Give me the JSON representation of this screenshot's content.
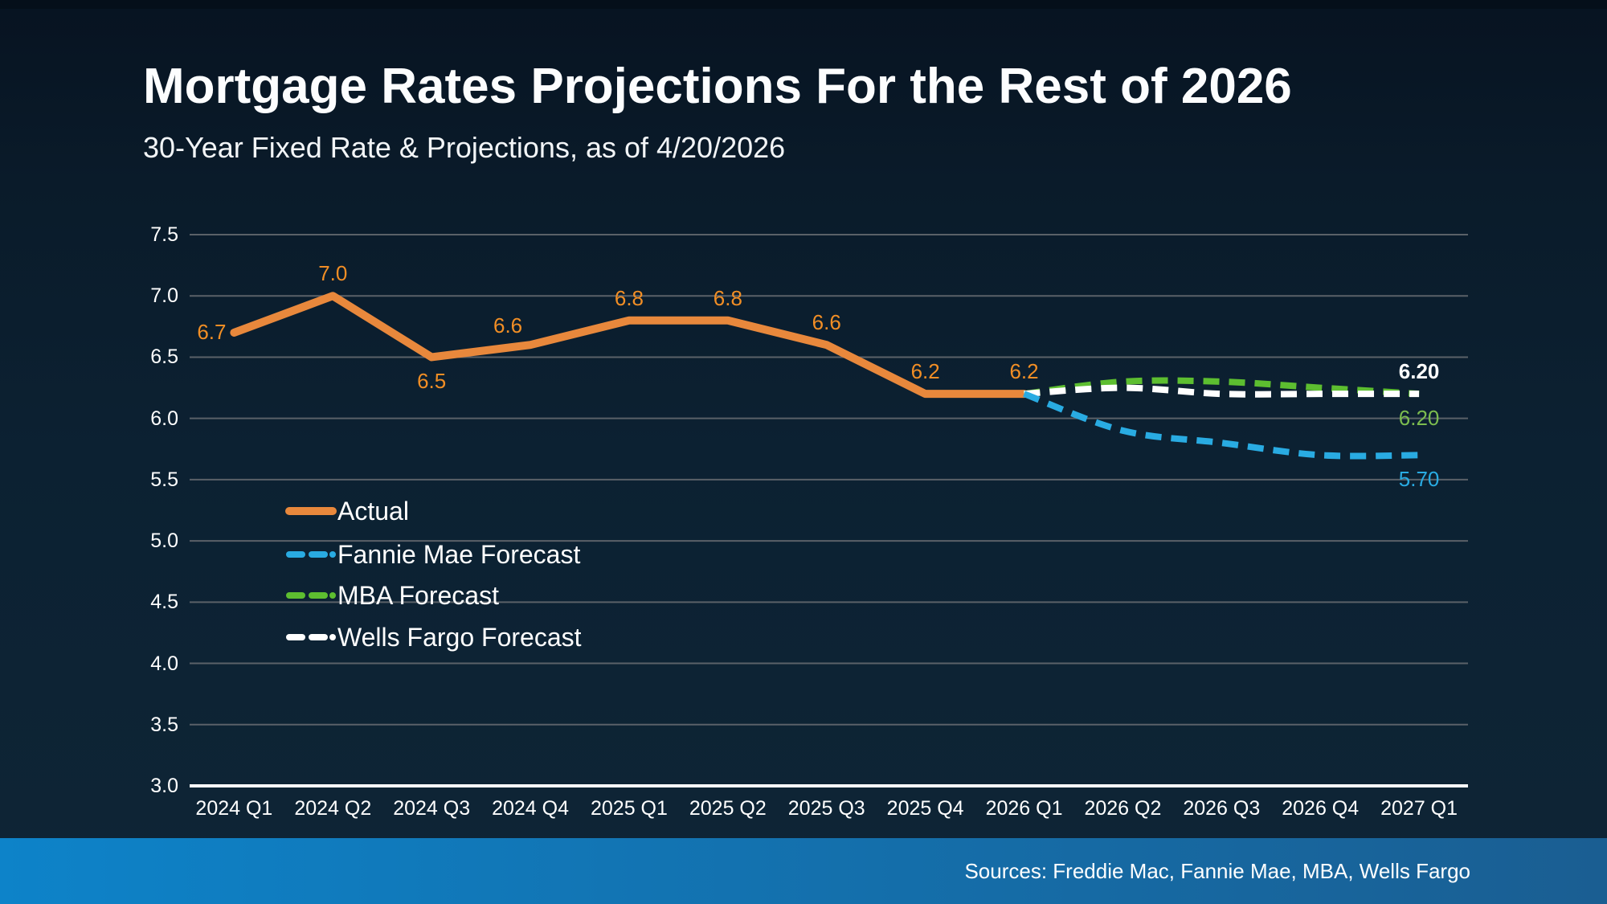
{
  "colors": {
    "background": "#0C2132",
    "top_strip": "#050F1A",
    "gridline": "#5A6168",
    "axis_line": "#FFFFFF",
    "actual": "#E8883C",
    "actual_label": "#F18E25",
    "fannie": "#29ABE2",
    "fannie_label": "#29ABE2",
    "mba": "#5DBE30",
    "mba_label": "#7CBC4F",
    "wells": "#FFFFFF",
    "wells_label": "#FFFFFF",
    "bar_gradient_left": "#0D83C9",
    "bar_gradient_right": "#1A5E92",
    "title_text": "#FCFDFE",
    "source_text": "#FFFFFF"
  },
  "chart_data": {
    "type": "line",
    "title": "Mortgage Rates Projections For the Rest of 2026",
    "subtitle": "30-Year Fixed Rate & Projections, as of 4/20/2026",
    "categories": [
      "2024 Q1",
      "2024 Q2",
      "2024 Q3",
      "2024 Q4",
      "2025 Q1",
      "2025 Q2",
      "2025 Q3",
      "2025 Q4",
      "2026 Q1",
      "2026 Q2",
      "2026 Q3",
      "2026 Q4",
      "2027 Q1"
    ],
    "ylim": [
      3.0,
      7.5
    ],
    "ytick_step": 0.5,
    "yticks": [
      "7.5",
      "7.0",
      "6.5",
      "6.0",
      "5.5",
      "5.0",
      "4.5",
      "4.0",
      "3.5",
      "3.0"
    ],
    "grid": true,
    "legend_position": "inside-left",
    "series": [
      {
        "name": "Actual",
        "color_key": "actual",
        "label_color_key": "actual_label",
        "style": "solid",
        "smooth": false,
        "start_index": 0,
        "values": [
          6.7,
          7.0,
          6.5,
          6.6,
          6.8,
          6.8,
          6.6,
          6.2,
          6.2
        ],
        "point_labels": [
          {
            "text": "6.7",
            "pos": "left"
          },
          {
            "text": "7.0",
            "pos": "above"
          },
          {
            "text": "6.5",
            "pos": "below"
          },
          {
            "text": "6.6",
            "pos": "above-left"
          },
          {
            "text": "6.8",
            "pos": "above"
          },
          {
            "text": "6.8",
            "pos": "above"
          },
          {
            "text": "6.6",
            "pos": "above"
          },
          {
            "text": "6.2",
            "pos": "above"
          },
          {
            "text": "6.2",
            "pos": "above"
          }
        ]
      },
      {
        "name": "Fannie Mae Forecast",
        "color_key": "fannie",
        "label_color_key": "fannie_label",
        "style": "dashed",
        "smooth": true,
        "start_index": 8,
        "values": [
          6.2,
          5.9,
          5.8,
          5.7,
          5.7
        ],
        "end_label": {
          "text": "5.70",
          "pos": "below",
          "bold": false
        }
      },
      {
        "name": "MBA Forecast",
        "color_key": "mba",
        "label_color_key": "mba_label",
        "style": "dashed",
        "smooth": true,
        "start_index": 8,
        "values": [
          6.2,
          6.3,
          6.3,
          6.25,
          6.2
        ],
        "end_label": {
          "text": "6.20",
          "pos": "below",
          "bold": false
        }
      },
      {
        "name": "Wells Fargo Forecast",
        "color_key": "wells",
        "label_color_key": "wells_label",
        "style": "dashed",
        "smooth": true,
        "start_index": 8,
        "values": [
          6.2,
          6.25,
          6.2,
          6.2,
          6.2
        ],
        "end_label": {
          "text": "6.20",
          "pos": "above",
          "bold": true
        }
      }
    ]
  },
  "source_bar": {
    "text": "Sources: Freddie Mac, Fannie Mae, MBA, Wells Fargo"
  }
}
